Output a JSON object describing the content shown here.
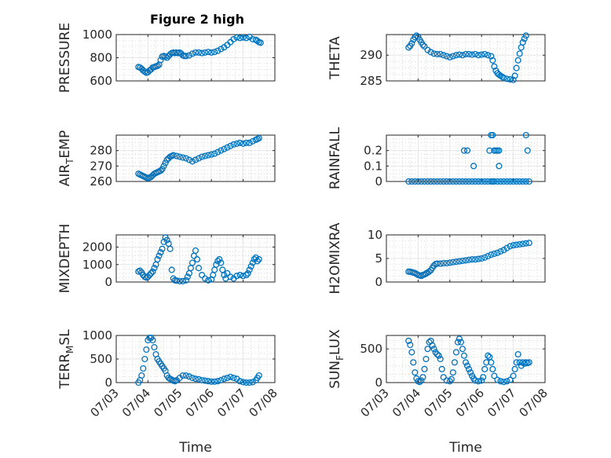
{
  "figure": {
    "title": "Figure 2 high"
  },
  "colors": {
    "marker": "#0072BD",
    "axis": "#262626",
    "grid": "#e6e6e6",
    "minorgrid": "#bdbdbd"
  },
  "x_ticks": [
    "07/03",
    "07/04",
    "07/05",
    "07/06",
    "07/07",
    "07/08"
  ],
  "chart_data": [
    {
      "type": "scatter",
      "ylabel": "PRESSURE",
      "title": "Figure 2 high",
      "xlabel": "",
      "xlim": [
        3,
        8
      ],
      "ylim": [
        600,
        1000
      ],
      "yticks": [
        600,
        800,
        1000
      ],
      "ytick_labels": [
        "600",
        "800",
        "1000"
      ],
      "x": [
        3.7,
        3.75,
        3.8,
        3.85,
        3.9,
        3.95,
        4.0,
        4.05,
        4.1,
        4.15,
        4.2,
        4.25,
        4.3,
        4.35,
        4.4,
        4.45,
        4.5,
        4.55,
        4.6,
        4.65,
        4.7,
        4.75,
        4.8,
        4.85,
        4.9,
        4.95,
        5.0,
        5.05,
        5.1,
        5.15,
        5.2,
        5.3,
        5.4,
        5.5,
        5.6,
        5.7,
        5.8,
        5.9,
        6.0,
        6.1,
        6.2,
        6.3,
        6.4,
        6.5,
        6.6,
        6.7,
        6.8,
        6.9,
        7.0,
        7.1,
        7.2,
        7.3,
        7.4,
        7.45,
        7.5,
        7.55
      ],
      "y": [
        720,
        715,
        705,
        690,
        680,
        670,
        675,
        690,
        700,
        715,
        720,
        725,
        730,
        740,
        780,
        810,
        815,
        810,
        800,
        815,
        830,
        840,
        845,
        840,
        845,
        840,
        845,
        835,
        820,
        815,
        815,
        820,
        835,
        845,
        845,
        840,
        845,
        850,
        845,
        850,
        860,
        875,
        890,
        910,
        935,
        960,
        975,
        970,
        975,
        970,
        980,
        960,
        955,
        945,
        935,
        930
      ]
    },
    {
      "type": "scatter",
      "ylabel": "THETA",
      "xlabel": "",
      "xlim": [
        3,
        8
      ],
      "ylim": [
        285,
        294
      ],
      "yticks": [
        285,
        290
      ],
      "ytick_labels": [
        "285",
        "290"
      ],
      "x": [
        3.7,
        3.75,
        3.8,
        3.85,
        3.9,
        3.95,
        4.0,
        4.05,
        4.1,
        4.15,
        4.2,
        4.3,
        4.4,
        4.5,
        4.6,
        4.7,
        4.8,
        4.9,
        5.0,
        5.1,
        5.2,
        5.3,
        5.4,
        5.5,
        5.6,
        5.7,
        5.8,
        5.9,
        6.0,
        6.1,
        6.2,
        6.3,
        6.35,
        6.4,
        6.45,
        6.5,
        6.55,
        6.6,
        6.65,
        6.7,
        6.8,
        6.9,
        7.0,
        7.05,
        7.1,
        7.15,
        7.2,
        7.25,
        7.3,
        7.35,
        7.4
      ],
      "y": [
        291.5,
        291.8,
        292.3,
        293.0,
        293.5,
        293.8,
        293.6,
        293.0,
        292.5,
        292.0,
        291.7,
        291.0,
        290.6,
        290.3,
        290.2,
        290.2,
        290.0,
        289.8,
        289.6,
        289.8,
        290.0,
        290.1,
        290.0,
        290.2,
        290.2,
        290.1,
        290.2,
        290.0,
        290.1,
        290.2,
        290.0,
        289.8,
        289.0,
        287.8,
        287.0,
        286.5,
        286.2,
        286.0,
        285.8,
        285.6,
        285.4,
        285.3,
        285.2,
        286.0,
        287.5,
        289.0,
        290.3,
        291.5,
        292.5,
        293.2,
        293.8
      ]
    },
    {
      "type": "scatter",
      "ylabel": "AIR_TEMP",
      "xlabel": "",
      "xlim": [
        3,
        8
      ],
      "ylim": [
        260,
        290
      ],
      "yticks": [
        260,
        270,
        280
      ],
      "ytick_labels": [
        "260",
        "270",
        "280"
      ],
      "x": [
        3.7,
        3.75,
        3.8,
        3.85,
        3.9,
        3.95,
        4.0,
        4.05,
        4.1,
        4.15,
        4.2,
        4.25,
        4.3,
        4.35,
        4.4,
        4.45,
        4.5,
        4.55,
        4.6,
        4.65,
        4.7,
        4.75,
        4.8,
        4.9,
        5.0,
        5.1,
        5.2,
        5.3,
        5.4,
        5.5,
        5.6,
        5.7,
        5.8,
        5.9,
        6.0,
        6.1,
        6.2,
        6.3,
        6.4,
        6.5,
        6.6,
        6.7,
        6.8,
        6.9,
        7.0,
        7.1,
        7.2,
        7.3,
        7.4,
        7.45,
        7.5
      ],
      "y": [
        265,
        264.5,
        264,
        263.5,
        263,
        262.5,
        262,
        262.5,
        263,
        264,
        265,
        265.5,
        266,
        266.5,
        267,
        268,
        270,
        272,
        274,
        275,
        276,
        276.5,
        277,
        276.5,
        276,
        275.5,
        275,
        274,
        273,
        274,
        275,
        276,
        276.5,
        277,
        277.5,
        278,
        279,
        280,
        281,
        282,
        283,
        284,
        284.5,
        285,
        284.5,
        285,
        285,
        286,
        287,
        287.5,
        288
      ]
    },
    {
      "type": "scatter",
      "ylabel": "RAINFALL",
      "xlabel": "",
      "xlim": [
        3,
        8
      ],
      "ylim": [
        0,
        0.3
      ],
      "yticks": [
        0,
        0.1,
        0.2
      ],
      "ytick_labels": [
        "0",
        "0.1",
        "0.2"
      ],
      "x": [
        3.7,
        3.8,
        3.9,
        4.0,
        4.1,
        4.2,
        4.3,
        4.4,
        4.5,
        4.6,
        4.7,
        4.8,
        4.9,
        5.0,
        5.1,
        5.2,
        5.3,
        5.4,
        5.5,
        5.6,
        5.7,
        5.8,
        5.9,
        6.0,
        6.1,
        6.2,
        6.3,
        6.4,
        6.5,
        6.6,
        6.7,
        6.8,
        6.9,
        7.0,
        7.1,
        7.2,
        7.3,
        7.4,
        7.5,
        5.45,
        5.55,
        5.75,
        6.25,
        6.3,
        6.35,
        6.35,
        6.4,
        6.45,
        6.5,
        6.55,
        6.55,
        7.4,
        7.45
      ],
      "y": [
        0,
        0,
        0,
        0,
        0,
        0,
        0,
        0,
        0,
        0,
        0,
        0,
        0,
        0,
        0,
        0,
        0,
        0,
        0,
        0,
        0,
        0,
        0,
        0,
        0,
        0,
        0,
        0,
        0,
        0,
        0,
        0,
        0,
        0,
        0,
        0,
        0,
        0,
        0,
        0.2,
        0.2,
        0.1,
        0.2,
        0.3,
        0.3,
        0,
        0.2,
        0.2,
        0.2,
        0.2,
        0.1,
        0.3,
        0.2
      ]
    },
    {
      "type": "scatter",
      "ylabel": "MIXDEPTH",
      "xlabel": "",
      "xlim": [
        3,
        8
      ],
      "ylim": [
        0,
        2700
      ],
      "yticks": [
        0,
        1000,
        2000
      ],
      "ytick_labels": [
        "0",
        "1000",
        "2000"
      ],
      "x": [
        3.7,
        3.75,
        3.8,
        3.85,
        3.9,
        3.95,
        4.0,
        4.05,
        4.1,
        4.15,
        4.2,
        4.25,
        4.3,
        4.35,
        4.4,
        4.45,
        4.5,
        4.55,
        4.6,
        4.65,
        4.7,
        4.75,
        4.8,
        4.85,
        4.9,
        5.0,
        5.1,
        5.2,
        5.25,
        5.3,
        5.35,
        5.4,
        5.45,
        5.5,
        5.55,
        5.6,
        5.7,
        5.8,
        5.9,
        6.0,
        6.05,
        6.1,
        6.15,
        6.2,
        6.25,
        6.3,
        6.35,
        6.4,
        6.45,
        6.5,
        6.6,
        6.7,
        6.8,
        6.9,
        7.0,
        7.1,
        7.15,
        7.2,
        7.25,
        7.3,
        7.35,
        7.4,
        7.45,
        7.5
      ],
      "y": [
        600,
        650,
        550,
        400,
        300,
        250,
        300,
        400,
        500,
        600,
        800,
        1000,
        1300,
        1500,
        1700,
        1900,
        2300,
        2550,
        2400,
        2200,
        1900,
        700,
        200,
        100,
        80,
        50,
        50,
        100,
        300,
        500,
        800,
        1100,
        1500,
        1800,
        1300,
        800,
        400,
        200,
        100,
        150,
        400,
        700,
        1000,
        1200,
        1300,
        1100,
        700,
        400,
        200,
        500,
        300,
        200,
        350,
        400,
        350,
        400,
        500,
        700,
        900,
        1100,
        1300,
        1400,
        1200,
        1300
      ]
    },
    {
      "type": "scatter",
      "ylabel": "H2OMIXRA",
      "xlabel": "",
      "xlim": [
        3,
        8
      ],
      "ylim": [
        0,
        10
      ],
      "yticks": [
        0,
        5,
        10
      ],
      "ytick_labels": [
        "0",
        "5",
        "10"
      ],
      "x": [
        3.7,
        3.75,
        3.8,
        3.85,
        3.9,
        3.95,
        4.0,
        4.05,
        4.1,
        4.15,
        4.2,
        4.25,
        4.3,
        4.35,
        4.4,
        4.45,
        4.5,
        4.55,
        4.6,
        4.7,
        4.8,
        4.9,
        5.0,
        5.1,
        5.2,
        5.3,
        5.4,
        5.5,
        5.6,
        5.7,
        5.8,
        5.9,
        6.0,
        6.1,
        6.2,
        6.3,
        6.4,
        6.5,
        6.6,
        6.7,
        6.8,
        6.9,
        7.0,
        7.1,
        7.2,
        7.3,
        7.4,
        7.5
      ],
      "y": [
        2.2,
        2.2,
        2.1,
        2.0,
        1.9,
        1.7,
        1.5,
        1.4,
        1.3,
        1.5,
        1.6,
        1.8,
        2.0,
        2.2,
        2.5,
        3.0,
        3.5,
        3.8,
        3.9,
        3.9,
        4.0,
        4.0,
        4.1,
        4.2,
        4.3,
        4.4,
        4.5,
        4.6,
        4.7,
        4.8,
        4.8,
        4.9,
        5.0,
        5.2,
        5.5,
        5.8,
        6.0,
        6.2,
        6.5,
        6.8,
        7.2,
        7.6,
        7.8,
        7.9,
        8.0,
        8.1,
        8.2,
        8.3
      ]
    },
    {
      "type": "scatter",
      "ylabel": "TERR_MSL",
      "xlabel": "Time",
      "xlim": [
        3,
        8
      ],
      "ylim": [
        0,
        1000
      ],
      "yticks": [
        0,
        500,
        1000
      ],
      "ytick_labels": [
        "0",
        "500",
        "1000"
      ],
      "x": [
        3.7,
        3.75,
        3.8,
        3.85,
        3.9,
        3.95,
        4.0,
        4.05,
        4.1,
        4.15,
        4.2,
        4.25,
        4.3,
        4.35,
        4.4,
        4.45,
        4.5,
        4.55,
        4.6,
        4.65,
        4.7,
        4.75,
        4.8,
        4.85,
        4.9,
        5.0,
        5.1,
        5.2,
        5.3,
        5.4,
        5.5,
        5.6,
        5.7,
        5.8,
        5.9,
        6.0,
        6.1,
        6.2,
        6.3,
        6.4,
        6.5,
        6.6,
        6.7,
        6.8,
        6.9,
        7.0,
        7.1,
        7.2,
        7.3,
        7.4,
        7.45,
        7.5
      ],
      "y": [
        0,
        50,
        150,
        300,
        500,
        700,
        900,
        950,
        950,
        900,
        750,
        600,
        500,
        450,
        400,
        350,
        300,
        250,
        150,
        100,
        80,
        60,
        40,
        30,
        50,
        100,
        150,
        150,
        130,
        100,
        80,
        70,
        50,
        40,
        30,
        20,
        20,
        30,
        50,
        80,
        100,
        120,
        100,
        80,
        30,
        10,
        0,
        0,
        10,
        50,
        100,
        150
      ]
    },
    {
      "type": "scatter",
      "ylabel": "SUN_FLUX",
      "xlabel": "Time",
      "xlim": [
        3,
        8
      ],
      "ylim": [
        0,
        700
      ],
      "yticks": [
        0,
        500
      ],
      "ytick_labels": [
        "0",
        "500"
      ],
      "x": [
        3.7,
        3.75,
        3.8,
        3.85,
        3.9,
        3.95,
        4.0,
        4.05,
        4.1,
        4.15,
        4.2,
        4.25,
        4.3,
        4.35,
        4.4,
        4.45,
        4.5,
        4.55,
        4.6,
        4.65,
        4.7,
        4.75,
        4.8,
        4.9,
        5.0,
        5.05,
        5.1,
        5.15,
        5.2,
        5.25,
        5.3,
        5.35,
        5.4,
        5.45,
        5.5,
        5.55,
        5.6,
        5.65,
        5.7,
        5.75,
        5.8,
        5.9,
        6.0,
        6.05,
        6.1,
        6.15,
        6.2,
        6.25,
        6.3,
        6.35,
        6.4,
        6.5,
        6.6,
        6.7,
        6.8,
        6.9,
        7.0,
        7.05,
        7.1,
        7.15,
        7.2,
        7.25,
        7.3,
        7.35,
        7.4,
        7.45,
        7.5
      ],
      "y": [
        620,
        560,
        450,
        300,
        150,
        60,
        20,
        10,
        30,
        80,
        200,
        350,
        500,
        600,
        620,
        550,
        500,
        450,
        420,
        400,
        350,
        200,
        80,
        30,
        20,
        50,
        150,
        300,
        450,
        600,
        650,
        600,
        500,
        400,
        300,
        250,
        200,
        150,
        100,
        60,
        30,
        20,
        30,
        80,
        200,
        300,
        400,
        380,
        300,
        200,
        100,
        40,
        20,
        10,
        20,
        40,
        100,
        200,
        300,
        420,
        300,
        250,
        300,
        280,
        300,
        290,
        300
      ]
    }
  ]
}
